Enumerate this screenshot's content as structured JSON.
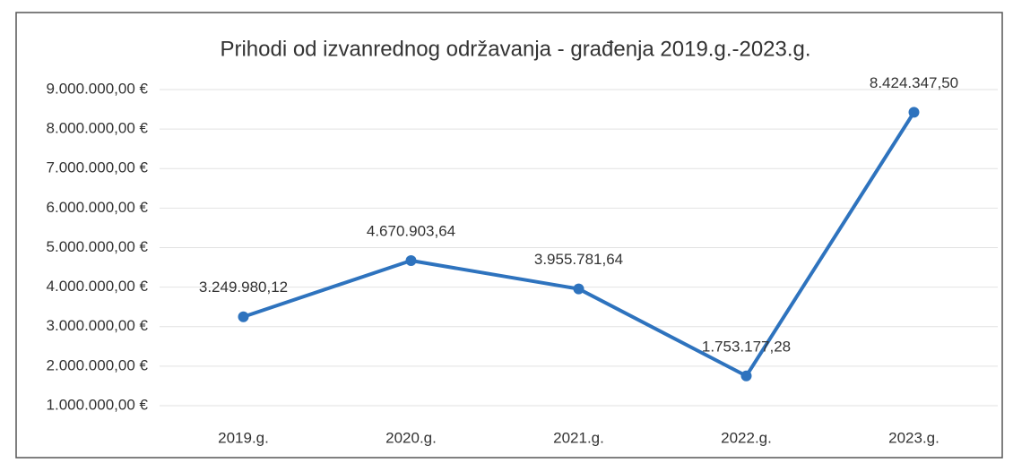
{
  "chart_data": {
    "type": "line",
    "title": "Prihodi od izvanrednog održavanja - građenja 2019.g.-2023.g.",
    "categories": [
      "2019.g.",
      "2020.g.",
      "2021.g.",
      "2022.g.",
      "2023.g."
    ],
    "series": [
      {
        "name": "Prihodi",
        "color": "#2e73be",
        "values": [
          3249980.12,
          4670903.64,
          3955781.64,
          1753177.28,
          8424347.5
        ],
        "value_labels": [
          "3.249.980,12",
          "4.670.903,64",
          "3.955.781,64",
          "1.753.177,28",
          "8.424.347,50"
        ]
      }
    ],
    "ylim": [
      1000000,
      9000000
    ],
    "yticks": [
      {
        "value": 1000000,
        "label": "1.000.000,00 €"
      },
      {
        "value": 2000000,
        "label": "2.000.000,00 €"
      },
      {
        "value": 3000000,
        "label": "3.000.000,00 €"
      },
      {
        "value": 4000000,
        "label": "4.000.000,00 €"
      },
      {
        "value": 5000000,
        "label": "5.000.000,00 €"
      },
      {
        "value": 6000000,
        "label": "6.000.000,00 €"
      },
      {
        "value": 7000000,
        "label": "7.000.000,00 €"
      },
      {
        "value": 8000000,
        "label": "8.000.000,00 €"
      },
      {
        "value": 9000000,
        "label": "9.000.000,00 €"
      }
    ],
    "grid": true
  }
}
